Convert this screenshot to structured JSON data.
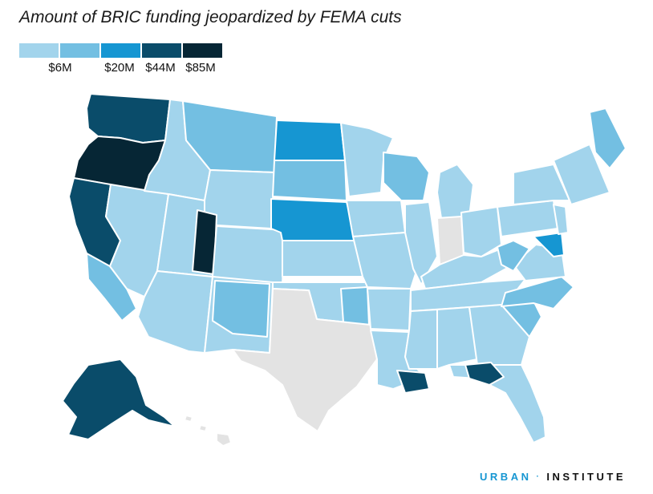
{
  "title": "Amount of BRIC funding jeopardized by FEMA cuts",
  "legend": {
    "colors": [
      "#a2d4ec",
      "#73bfe2",
      "#1696d2",
      "#0a4c6a",
      "#062635"
    ],
    "labels": [
      "$6M",
      "$20M",
      "$44M",
      "$85M"
    ]
  },
  "no_data_color": "#e3e3e3",
  "brand": {
    "part1": "URBAN",
    "separator": "·",
    "part2": "INSTITUTE"
  },
  "regions": [
    {
      "id": "washington",
      "level": 3
    },
    {
      "id": "oregon",
      "level": 4
    },
    {
      "id": "california-north",
      "level": 3
    },
    {
      "id": "california-south",
      "level": 1
    },
    {
      "id": "nevada",
      "level": 0
    },
    {
      "id": "idaho",
      "level": 0
    },
    {
      "id": "montana",
      "level": 1
    },
    {
      "id": "wyoming",
      "level": 0
    },
    {
      "id": "utah",
      "level": 0
    },
    {
      "id": "utah-east",
      "level": 4
    },
    {
      "id": "colorado",
      "level": 0
    },
    {
      "id": "arizona",
      "level": 0
    },
    {
      "id": "new-mexico",
      "level": 0
    },
    {
      "id": "new-mexico-east",
      "level": 1
    },
    {
      "id": "north-dakota",
      "level": 2
    },
    {
      "id": "south-dakota",
      "level": 1
    },
    {
      "id": "nebraska",
      "level": 2
    },
    {
      "id": "kansas",
      "level": 0
    },
    {
      "id": "oklahoma",
      "level": 0
    },
    {
      "id": "oklahoma-east",
      "level": 1
    },
    {
      "id": "texas",
      "level": -1
    },
    {
      "id": "minnesota",
      "level": 0
    },
    {
      "id": "iowa",
      "level": 0
    },
    {
      "id": "missouri",
      "level": 0
    },
    {
      "id": "arkansas",
      "level": 0
    },
    {
      "id": "louisiana",
      "level": 0
    },
    {
      "id": "louisiana-coast",
      "level": 3
    },
    {
      "id": "wisconsin",
      "level": 1
    },
    {
      "id": "illinois",
      "level": 0
    },
    {
      "id": "michigan",
      "level": 0
    },
    {
      "id": "indiana",
      "level": -1
    },
    {
      "id": "ohio",
      "level": 0
    },
    {
      "id": "kentucky",
      "level": 0
    },
    {
      "id": "tennessee",
      "level": 0
    },
    {
      "id": "mississippi",
      "level": 0
    },
    {
      "id": "alabama",
      "level": 0
    },
    {
      "id": "georgia",
      "level": 0
    },
    {
      "id": "florida",
      "level": 0
    },
    {
      "id": "florida-panhandle",
      "level": 3
    },
    {
      "id": "south-carolina",
      "level": 1
    },
    {
      "id": "north-carolina",
      "level": 1
    },
    {
      "id": "virginia",
      "level": 0
    },
    {
      "id": "west-virginia",
      "level": 1
    },
    {
      "id": "pennsylvania",
      "level": 0
    },
    {
      "id": "new-york",
      "level": 0
    },
    {
      "id": "maryland",
      "level": 2
    },
    {
      "id": "new-jersey",
      "level": 0
    },
    {
      "id": "new-england",
      "level": 0
    },
    {
      "id": "maine",
      "level": 1
    },
    {
      "id": "alaska",
      "level": 3
    },
    {
      "id": "hawaii",
      "level": -1
    }
  ]
}
